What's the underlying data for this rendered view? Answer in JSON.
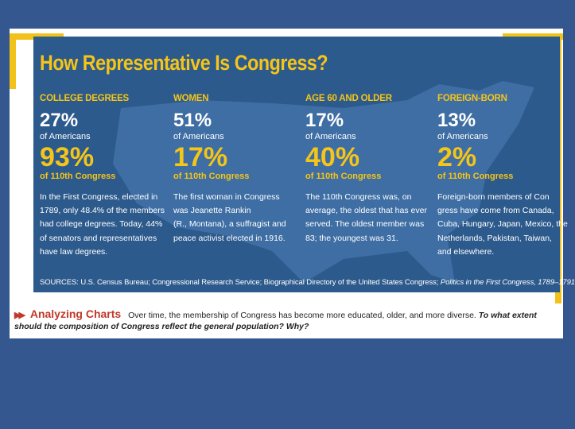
{
  "title": "How Representative Is Congress?",
  "columns": [
    {
      "heading": "COLLEGE DEGREES",
      "americans_value": "27%",
      "americans_label": "of Americans",
      "congress_value": "93%",
      "congress_label": "of 110th Congress",
      "desc_lines": [
        "In the First Congress, elected in",
        "1789, only 48.4% of the members",
        "had college degrees. Today, 44%",
        "of senators and representatives",
        "have law degrees."
      ]
    },
    {
      "heading": "WOMEN",
      "americans_value": "51%",
      "americans_label": "of Americans",
      "congress_value": "17%",
      "congress_label": "of 110th Congress",
      "desc_lines": [
        "The first woman in Congress",
        "was Jeanette Rankin",
        "(R., Montana), a suffragist and",
        "peace activist elected in 1916."
      ]
    },
    {
      "heading": "AGE 60 AND OLDER",
      "americans_value": "17%",
      "americans_label": "of Americans",
      "congress_value": "40%",
      "congress_label": "of 110th Congress",
      "desc_lines": [
        "The 110th Congress was, on",
        "average, the oldest that has ever",
        "served. The oldest member was",
        "83; the youngest was 31."
      ]
    },
    {
      "heading": "FOREIGN-BORN",
      "americans_value": "13%",
      "americans_label": "of Americans",
      "congress_value": "2%",
      "congress_label": "of 110th Congress",
      "desc_lines": [
        "Foreign-born members of Con",
        "gress have come from Canada,",
        "Cuba, Hungary, Japan, Mexico, the",
        "Netherlands, Pakistan, Taiwan,",
        "and elsewhere."
      ]
    }
  ],
  "sources_prefix": "SOURCES: U.S. Census Bureau; Congressional Research Service; Biographical Directory of the United States Congress; ",
  "sources_italic": "Politics in the First Congress, 1789–1791",
  "analyzing": {
    "arrow": "▶▶",
    "title": "Analyzing Charts",
    "text": "Over time, the membership of Congress has become more educated, older, and more diverse.",
    "question": "To what extent should the composition of Congress reflect the general population? Why?"
  },
  "colors": {
    "background": "#34578f",
    "panel": "#2d5a8c",
    "accent_yellow": "#f5c518",
    "frame_yellow": "#f2c21a",
    "analyzing_red": "#c0392b"
  }
}
